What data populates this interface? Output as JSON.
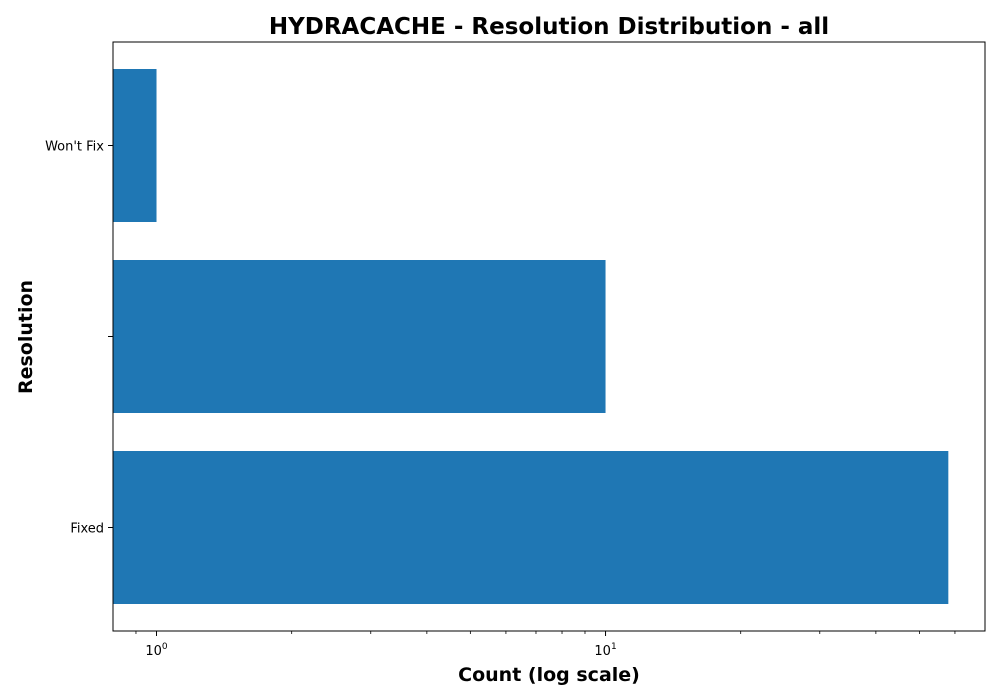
{
  "chart_data": {
    "type": "bar",
    "orientation": "horizontal",
    "title": "HYDRACACHE - Resolution Distribution - all",
    "xlabel": "Count (log scale)",
    "ylabel": "Resolution",
    "x_scale": "log",
    "xlim": [
      0.8,
      70
    ],
    "categories": [
      "Fixed",
      "",
      "Won't Fix"
    ],
    "values": [
      58,
      10,
      1
    ],
    "bar_color": "#1f77b4",
    "x_ticks": [
      {
        "value": 1,
        "base": "10",
        "exponent": "0"
      },
      {
        "value": 10,
        "base": "10",
        "exponent": "1"
      }
    ],
    "grid": false,
    "legend": "none"
  }
}
